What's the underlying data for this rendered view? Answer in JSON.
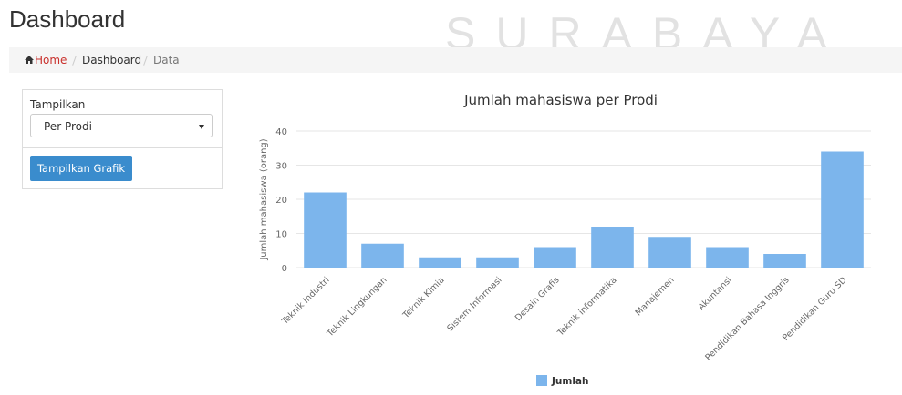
{
  "header": {
    "title": "Dashboard",
    "watermark": "SURABAYA"
  },
  "breadcrumb": [
    "Home",
    "Dashboard",
    "Data"
  ],
  "form": {
    "label": "Tampilkan",
    "select": "Per Prodi",
    "button": "Tampilkan Grafik"
  },
  "chart_data": {
    "type": "bar",
    "title": "Jumlah mahasiswa per Prodi",
    "y_label": "Jumlah mahasiswa (orang)",
    "categories": [
      "Teknik Industri",
      "Teknik Lingkungan",
      "Teknik Kimia",
      "Sistem Informasi",
      "Desain Grafis",
      "Teknik informatika",
      "Manajemen",
      "Akuntansi",
      "Pendidikan Bahasa Inggris",
      "Pendidikan Guru SD"
    ],
    "series": [
      {
        "name": "Jumlah",
        "color": "#7cb5ec",
        "values": [
          22,
          7,
          3,
          3,
          6,
          12,
          9,
          6,
          4,
          34
        ]
      }
    ],
    "ylim": [
      0,
      40
    ],
    "yticks": [
      0,
      10,
      20,
      30,
      40
    ],
    "grid": true,
    "legend": "bottom"
  }
}
